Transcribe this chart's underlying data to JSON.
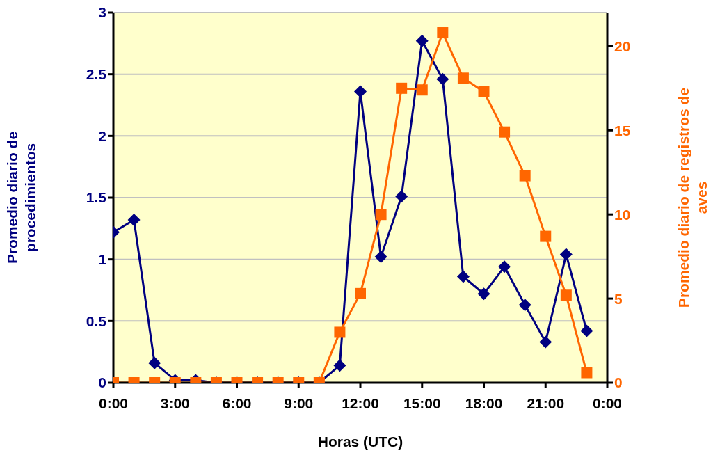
{
  "chart_data": {
    "type": "line",
    "xlabel": "Horas (UTC)",
    "ylabel": "Promedio diario de procedimientos",
    "y2label": "Promedio diario de registros de aves",
    "x": [
      0,
      1,
      2,
      3,
      4,
      5,
      6,
      7,
      8,
      9,
      10,
      11,
      12,
      13,
      14,
      15,
      16,
      17,
      18,
      19,
      20,
      21,
      22,
      23
    ],
    "series": [
      {
        "color": "#000080",
        "marker": "diamond",
        "values": [
          1.22,
          1.32,
          0.16,
          0.02,
          0.02,
          0,
          0,
          0,
          0,
          0,
          0,
          0.14,
          2.36,
          1.02,
          1.51,
          2.77,
          2.46,
          0.86,
          0.72,
          0.94,
          0.63,
          0.33,
          1.04,
          0.42
        ]
      },
      {
        "color": "#ff6600",
        "marker": "square",
        "axis": "y2",
        "values": [
          0,
          0,
          0,
          0,
          0,
          0,
          0,
          0,
          0,
          0,
          0,
          3.0,
          5.3,
          10.0,
          17.5,
          17.4,
          20.8,
          18.1,
          17.3,
          14.9,
          12.3,
          8.7,
          5.2,
          0.6
        ]
      }
    ],
    "xlim": [
      0,
      24
    ],
    "xticks": [
      {
        "value": 0,
        "label": "0:00"
      },
      {
        "value": 3,
        "label": "3:00"
      },
      {
        "value": 6,
        "label": "6:00"
      },
      {
        "value": 9,
        "label": "9:00"
      },
      {
        "value": 12,
        "label": "12:00"
      },
      {
        "value": 15,
        "label": "15:00"
      },
      {
        "value": 18,
        "label": "18:00"
      },
      {
        "value": 21,
        "label": "21:00"
      },
      {
        "value": 24,
        "label": "0:00"
      }
    ],
    "ylim": [
      0,
      3
    ],
    "yticks": [
      0,
      0.5,
      1,
      1.5,
      2,
      2.5,
      3
    ],
    "y2lim": [
      0,
      22
    ],
    "y2ticks": [
      0,
      5,
      10,
      15,
      20
    ],
    "grid": "y",
    "line_style": "solid"
  }
}
